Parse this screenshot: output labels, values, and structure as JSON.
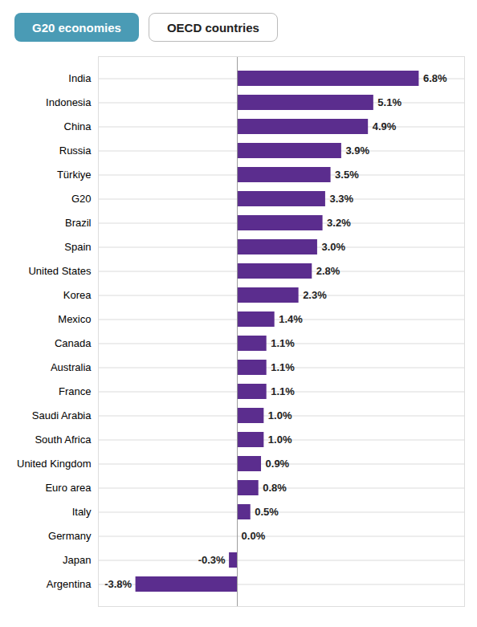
{
  "chart_data": {
    "type": "bar",
    "orientation": "horizontal",
    "annotations": [
      "G20 economies",
      "OECD countries"
    ],
    "categories": [
      "India",
      "Indonesia",
      "China",
      "Russia",
      "Türkiye",
      "G20",
      "Brazil",
      "Spain",
      "United States",
      "Korea",
      "Mexico",
      "Canada",
      "Australia",
      "France",
      "Saudi Arabia",
      "South Africa",
      "United Kingdom",
      "Euro area",
      "Italy",
      "Germany",
      "Japan",
      "Argentina"
    ],
    "values": [
      6.8,
      5.1,
      4.9,
      3.9,
      3.5,
      3.3,
      3.2,
      3.0,
      2.8,
      2.3,
      1.4,
      1.1,
      1.1,
      1.1,
      1.0,
      1.0,
      0.9,
      0.8,
      0.5,
      0.0,
      -0.3,
      -3.8
    ],
    "value_labels": [
      "6.8%",
      "5.1%",
      "4.9%",
      "3.9%",
      "3.5%",
      "3.3%",
      "3.2%",
      "3.0%",
      "2.8%",
      "2.3%",
      "1.4%",
      "1.1%",
      "1.1%",
      "1.1%",
      "1.0%",
      "1.0%",
      "0.9%",
      "0.8%",
      "0.5%",
      "0.0%",
      "-0.3%",
      "-3.8%"
    ],
    "data_labels": true,
    "color": "#5b2d8e",
    "xlim": [
      -5.2,
      8.5
    ],
    "xticks": [],
    "grid": true,
    "tick_labels": "y"
  }
}
